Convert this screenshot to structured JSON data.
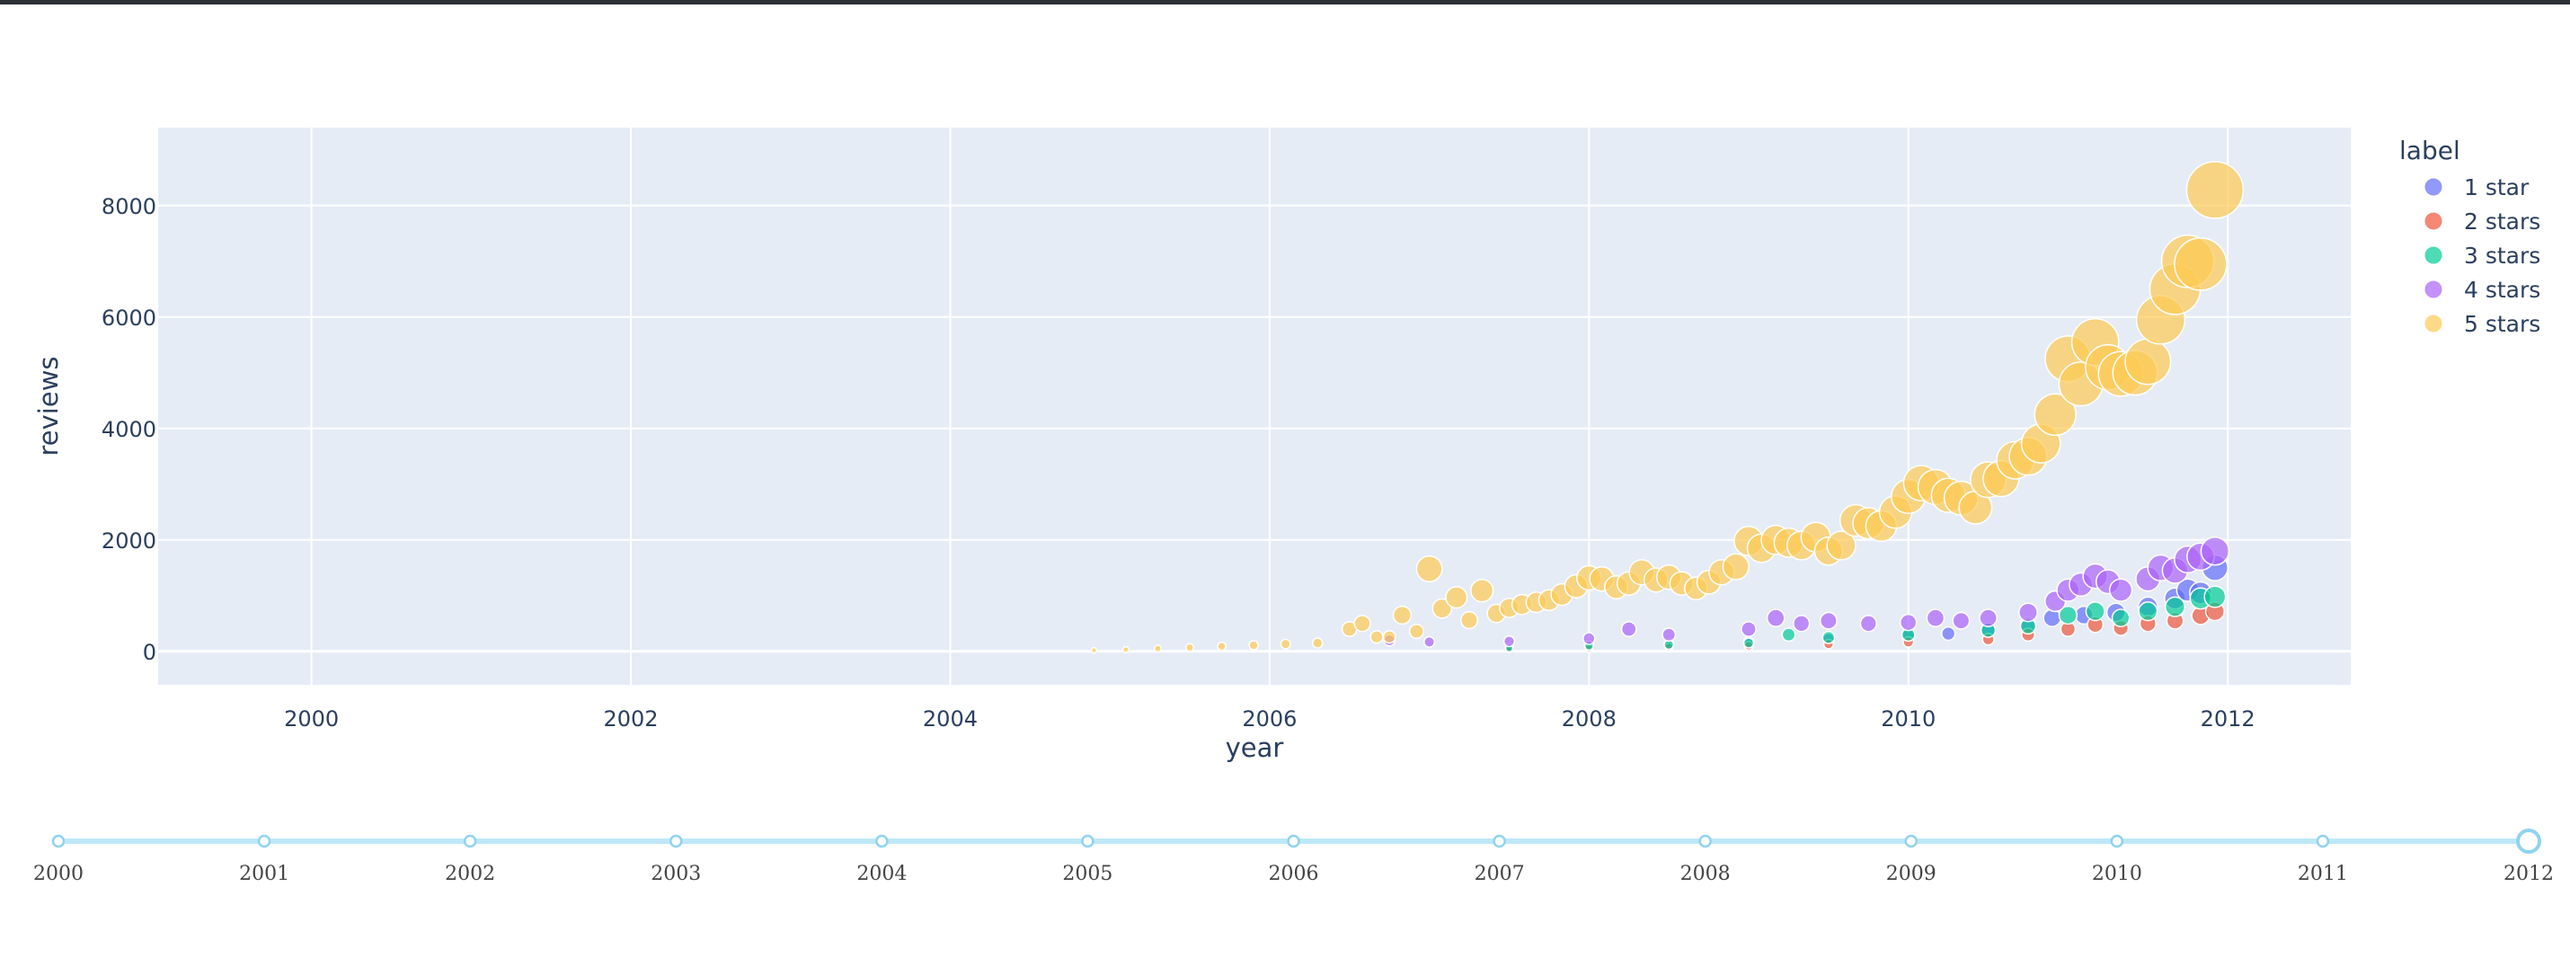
{
  "chart_data": {
    "type": "scatter",
    "xlabel": "year",
    "ylabel": "reviews",
    "xlim": [
      1999.04,
      2012.77
    ],
    "ylim": [
      -600,
      9400
    ],
    "x_ticks": [
      2000,
      2002,
      2004,
      2006,
      2008,
      2010,
      2012
    ],
    "x_tick_labels": [
      "2000",
      "2002",
      "2004",
      "2006",
      "2008",
      "2010",
      "2012"
    ],
    "y_ticks": [
      0,
      2000,
      4000,
      6000,
      8000
    ],
    "y_tick_labels": [
      "0",
      "2000",
      "4000",
      "6000",
      "8000"
    ],
    "grid": true,
    "legend": {
      "title": "label",
      "placement": "right"
    },
    "series": [
      {
        "name": "1 star",
        "color": "#636efa",
        "points": [
          [
            2007.5,
            80
          ],
          [
            2008.0,
            120
          ],
          [
            2008.5,
            140
          ],
          [
            2009.0,
            170
          ],
          [
            2009.5,
            220
          ],
          [
            2010.0,
            280
          ],
          [
            2010.25,
            320
          ],
          [
            2010.5,
            380
          ],
          [
            2010.75,
            480
          ],
          [
            2010.9,
            600
          ],
          [
            2011.1,
            650
          ],
          [
            2011.3,
            700
          ],
          [
            2011.5,
            800
          ],
          [
            2011.67,
            950
          ],
          [
            2011.75,
            1100
          ],
          [
            2011.83,
            1050
          ],
          [
            2011.92,
            1500
          ]
        ]
      },
      {
        "name": "2 stars",
        "color": "#ef553b",
        "points": [
          [
            2007.5,
            40
          ],
          [
            2008.0,
            60
          ],
          [
            2008.5,
            80
          ],
          [
            2009.0,
            100
          ],
          [
            2009.5,
            130
          ],
          [
            2010.0,
            170
          ],
          [
            2010.5,
            220
          ],
          [
            2010.75,
            300
          ],
          [
            2011.0,
            400
          ],
          [
            2011.17,
            480
          ],
          [
            2011.33,
            420
          ],
          [
            2011.5,
            500
          ],
          [
            2011.67,
            550
          ],
          [
            2011.83,
            640
          ],
          [
            2011.92,
            720
          ]
        ]
      },
      {
        "name": "3 stars",
        "color": "#00cc96",
        "points": [
          [
            2007.5,
            60
          ],
          [
            2008.0,
            100
          ],
          [
            2008.5,
            120
          ],
          [
            2009.0,
            150
          ],
          [
            2009.25,
            300
          ],
          [
            2009.5,
            250
          ],
          [
            2010.0,
            300
          ],
          [
            2010.5,
            380
          ],
          [
            2010.75,
            450
          ],
          [
            2011.0,
            650
          ],
          [
            2011.17,
            720
          ],
          [
            2011.33,
            600
          ],
          [
            2011.5,
            720
          ],
          [
            2011.67,
            800
          ],
          [
            2011.83,
            950
          ],
          [
            2011.92,
            980
          ]
        ]
      },
      {
        "name": "4 stars",
        "color": "#ab63fa",
        "points": [
          [
            2006.75,
            200
          ],
          [
            2007.0,
            170
          ],
          [
            2007.5,
            180
          ],
          [
            2008.0,
            230
          ],
          [
            2008.25,
            400
          ],
          [
            2008.5,
            300
          ],
          [
            2009.0,
            400
          ],
          [
            2009.17,
            600
          ],
          [
            2009.33,
            500
          ],
          [
            2009.5,
            550
          ],
          [
            2009.75,
            500
          ],
          [
            2010.0,
            520
          ],
          [
            2010.17,
            600
          ],
          [
            2010.33,
            550
          ],
          [
            2010.5,
            600
          ],
          [
            2010.75,
            700
          ],
          [
            2010.92,
            900
          ],
          [
            2011.0,
            1100
          ],
          [
            2011.08,
            1200
          ],
          [
            2011.17,
            1350
          ],
          [
            2011.25,
            1250
          ],
          [
            2011.33,
            1100
          ],
          [
            2011.5,
            1300
          ],
          [
            2011.58,
            1500
          ],
          [
            2011.67,
            1450
          ],
          [
            2011.75,
            1650
          ],
          [
            2011.83,
            1700
          ],
          [
            2011.92,
            1800
          ]
        ]
      },
      {
        "name": "5 stars",
        "color": "#fecb52",
        "points": [
          [
            2004.9,
            20
          ],
          [
            2005.1,
            30
          ],
          [
            2005.3,
            50
          ],
          [
            2005.5,
            70
          ],
          [
            2005.7,
            90
          ],
          [
            2005.9,
            110
          ],
          [
            2006.1,
            130
          ],
          [
            2006.3,
            150
          ],
          [
            2006.5,
            400
          ],
          [
            2006.58,
            500
          ],
          [
            2006.67,
            260
          ],
          [
            2006.75,
            260
          ],
          [
            2006.83,
            650
          ],
          [
            2006.92,
            360
          ],
          [
            2007.0,
            1480
          ],
          [
            2007.08,
            770
          ],
          [
            2007.17,
            970
          ],
          [
            2007.25,
            560
          ],
          [
            2007.33,
            1090
          ],
          [
            2007.42,
            680
          ],
          [
            2007.5,
            780
          ],
          [
            2007.58,
            840
          ],
          [
            2007.67,
            880
          ],
          [
            2007.75,
            920
          ],
          [
            2007.83,
            1020
          ],
          [
            2007.92,
            1170
          ],
          [
            2008.0,
            1320
          ],
          [
            2008.08,
            1300
          ],
          [
            2008.17,
            1150
          ],
          [
            2008.25,
            1220
          ],
          [
            2008.33,
            1420
          ],
          [
            2008.42,
            1280
          ],
          [
            2008.5,
            1330
          ],
          [
            2008.58,
            1220
          ],
          [
            2008.67,
            1130
          ],
          [
            2008.75,
            1240
          ],
          [
            2008.83,
            1420
          ],
          [
            2008.92,
            1520
          ],
          [
            2009.0,
            1980
          ],
          [
            2009.08,
            1850
          ],
          [
            2009.17,
            2000
          ],
          [
            2009.25,
            1950
          ],
          [
            2009.33,
            1900
          ],
          [
            2009.42,
            2050
          ],
          [
            2009.5,
            1800
          ],
          [
            2009.58,
            1900
          ],
          [
            2009.67,
            2350
          ],
          [
            2009.75,
            2300
          ],
          [
            2009.83,
            2250
          ],
          [
            2009.92,
            2500
          ],
          [
            2010.0,
            2780
          ],
          [
            2010.08,
            3020
          ],
          [
            2010.17,
            2950
          ],
          [
            2010.25,
            2800
          ],
          [
            2010.33,
            2750
          ],
          [
            2010.42,
            2580
          ],
          [
            2010.5,
            3080
          ],
          [
            2010.58,
            3100
          ],
          [
            2010.67,
            3430
          ],
          [
            2010.75,
            3500
          ],
          [
            2010.83,
            3730
          ],
          [
            2010.92,
            4250
          ],
          [
            2011.0,
            5250
          ],
          [
            2011.08,
            4800
          ],
          [
            2011.17,
            5550
          ],
          [
            2011.25,
            5100
          ],
          [
            2011.33,
            4980
          ],
          [
            2011.42,
            5000
          ],
          [
            2011.5,
            5200
          ],
          [
            2011.58,
            5950
          ],
          [
            2011.67,
            6500
          ],
          [
            2011.75,
            7000
          ],
          [
            2011.83,
            6950
          ],
          [
            2011.92,
            8280
          ]
        ]
      }
    ],
    "slider": {
      "labels": [
        "2000",
        "2001",
        "2002",
        "2003",
        "2004",
        "2005",
        "2006",
        "2007",
        "2008",
        "2009",
        "2010",
        "2011",
        "2012"
      ],
      "active": "2012"
    }
  }
}
